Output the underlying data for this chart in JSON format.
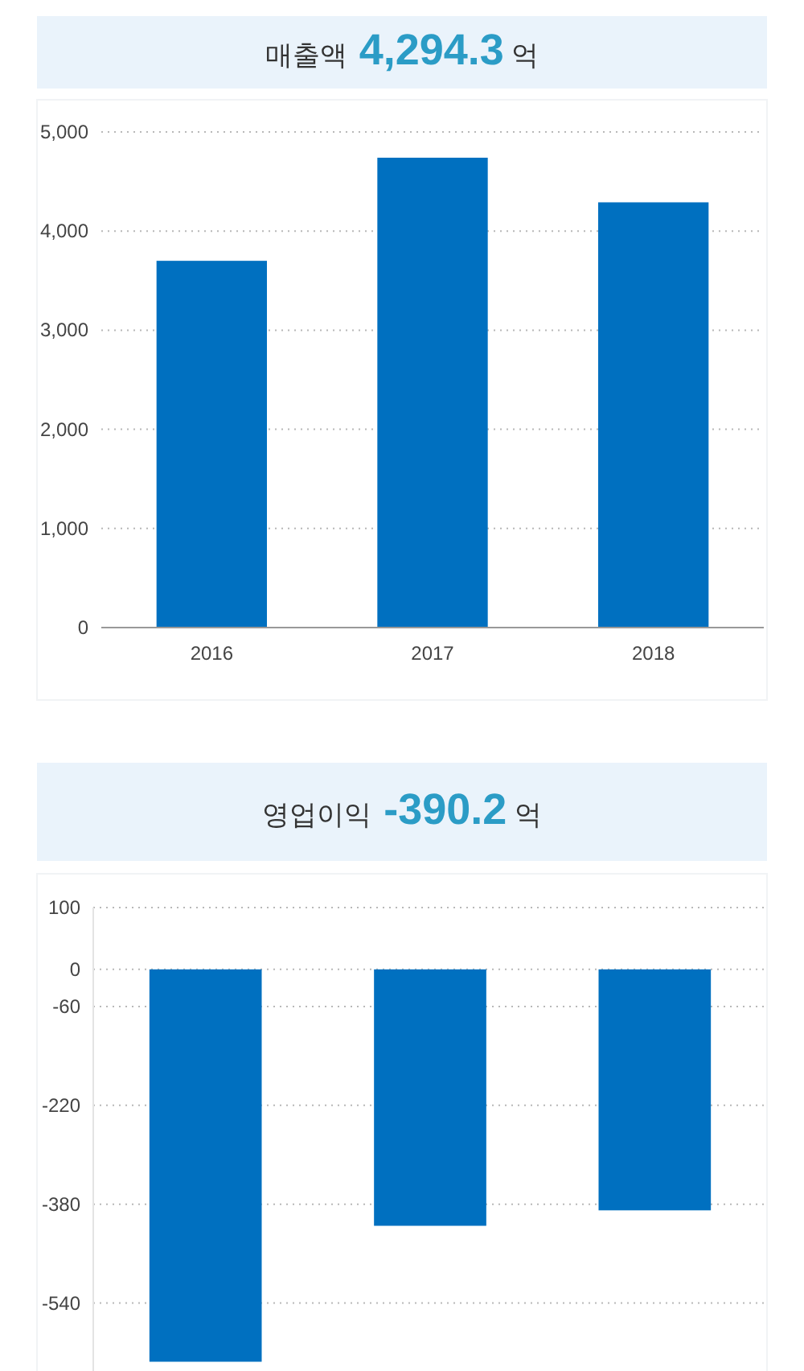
{
  "chart_data": [
    {
      "type": "bar",
      "title": "매출액 4,294.3 억",
      "categories": [
        "2016",
        "2017",
        "2018"
      ],
      "values": [
        3700,
        4740,
        4290
      ],
      "color": "#0070c0",
      "ylim": [
        0,
        5000
      ],
      "yticks": [
        {
          "value": 0,
          "label": "0"
        },
        {
          "value": 1000,
          "label": "1,000"
        },
        {
          "value": 2000,
          "label": "2,000"
        },
        {
          "value": 3000,
          "label": "3,000"
        },
        {
          "value": 4000,
          "label": "4,000"
        },
        {
          "value": 5000,
          "label": "5,000"
        }
      ],
      "grid": "y"
    },
    {
      "type": "bar",
      "title": "영업이익 -390.2 억",
      "categories": [
        null,
        null,
        null
      ],
      "values": [
        -635,
        -415,
        -390
      ],
      "color": "#0070c0",
      "ylim": [
        -650,
        100
      ],
      "yticks": [
        100,
        0,
        -60,
        -220,
        -380,
        -540
      ],
      "grid": "y",
      "tick_labels": "y"
    }
  ]
}
